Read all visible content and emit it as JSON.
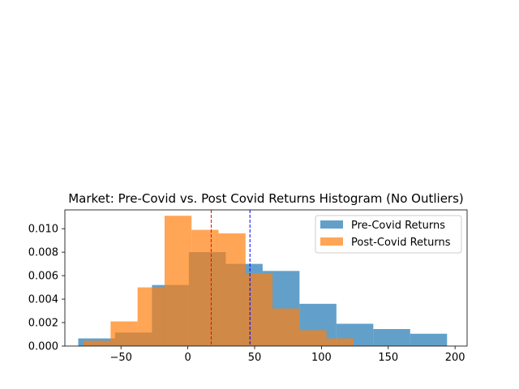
{
  "chart_data": {
    "type": "histogram",
    "title": "Market: Pre-Covid vs. Post Covid Returns Histogram (No Outliers)",
    "xlabel": "",
    "ylabel": "",
    "xlim": [
      -92,
      209
    ],
    "ylim": [
      0,
      0.0116
    ],
    "xticks": [
      -50,
      0,
      50,
      100,
      150,
      200
    ],
    "xtick_labels": [
      "−50",
      "0",
      "50",
      "100",
      "150",
      "200"
    ],
    "yticks": [
      0.0,
      0.002,
      0.004,
      0.006,
      0.008,
      0.01
    ],
    "ytick_labels": [
      "0.000",
      "0.002",
      "0.004",
      "0.006",
      "0.008",
      "0.010"
    ],
    "grid": false,
    "legend_position": "upper right",
    "series": [
      {
        "name": "Pre-Covid Returns",
        "color": "#1f77b4",
        "alpha": 0.7,
        "bin_edges": [
          -82.0,
          -54.4,
          -26.8,
          0.8,
          28.4,
          56.0,
          83.6,
          111.2,
          138.8,
          166.4,
          194.0
        ],
        "densities": [
          0.00065,
          0.00115,
          0.0052,
          0.008,
          0.007,
          0.0064,
          0.0036,
          0.0019,
          0.00145,
          0.00105
        ]
      },
      {
        "name": "Post-Covid Returns",
        "color": "#ff7f0e",
        "alpha": 0.7,
        "bin_edges": [
          -78.0,
          -57.8,
          -37.6,
          -17.4,
          2.8,
          23.0,
          43.2,
          63.4,
          83.6,
          103.8,
          124.0
        ],
        "densities": [
          0.00045,
          0.0021,
          0.005,
          0.0111,
          0.0099,
          0.0096,
          0.0062,
          0.0032,
          0.00135,
          0.00065
        ]
      }
    ],
    "vlines": [
      {
        "x": 17.5,
        "color": "#ff0000",
        "style": "dashed"
      },
      {
        "x": 46.5,
        "color": "#0000ff",
        "style": "dashed"
      }
    ]
  }
}
